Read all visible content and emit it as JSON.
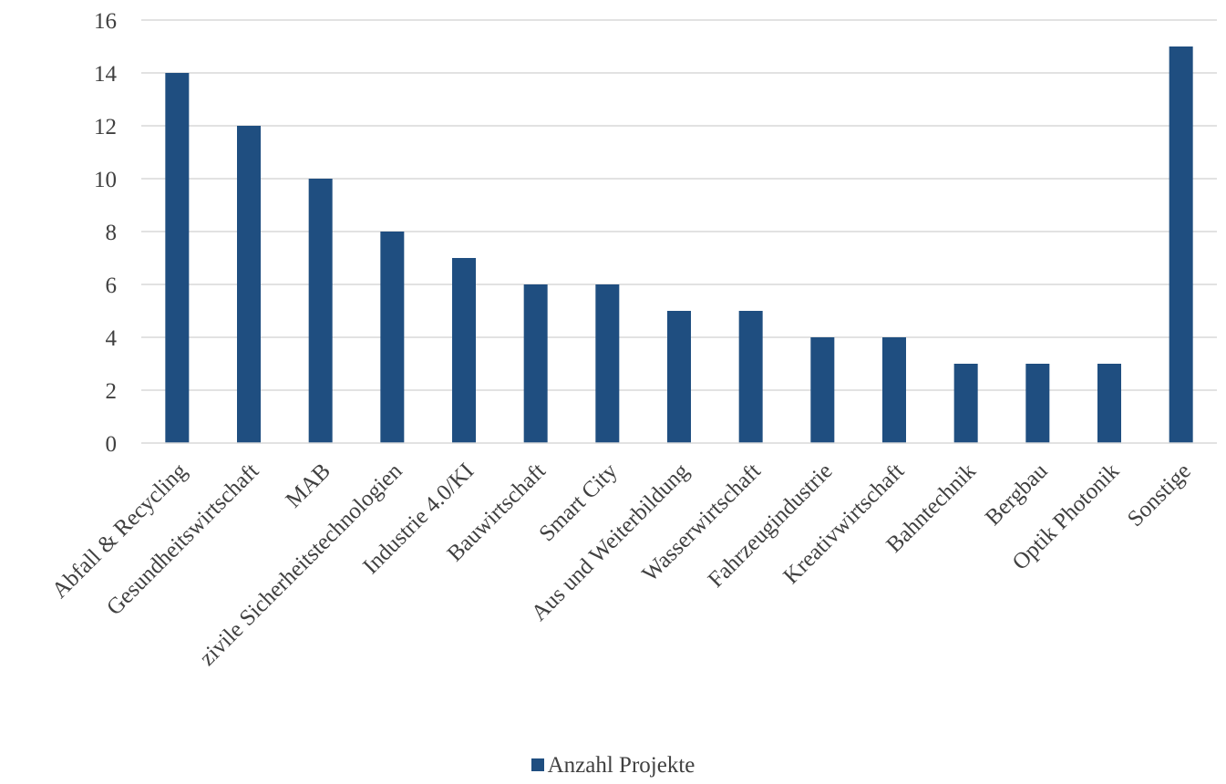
{
  "chart_data": {
    "type": "bar",
    "title": "",
    "xlabel": "",
    "ylabel": "",
    "ylim": [
      0,
      16
    ],
    "yticks": [
      0,
      2,
      4,
      6,
      8,
      10,
      12,
      14,
      16
    ],
    "grid": true,
    "legend_position": "bottom",
    "categories": [
      "Abfall & Recycling",
      "Gesundheitswirtschaft",
      "MAB",
      "zivile Sicherheitstechnologien",
      "Industrie 4.0/KI",
      "Bauwirtschaft",
      "Smart City",
      "Aus und Weiterbildung",
      "Wasserwirtschaft",
      "Fahrzeugindustrie",
      "Kreativwirtschaft",
      "Bahntechnik",
      "Bergbau",
      "Optik Photonik",
      "Sonstige"
    ],
    "series": [
      {
        "name": "Anzahl Projekte",
        "color": "#1f4e80",
        "values": [
          14,
          12,
          10,
          8,
          7,
          6,
          6,
          5,
          5,
          4,
          4,
          3,
          3,
          3,
          15
        ]
      }
    ],
    "colors": {
      "bar": "#1f4e80",
      "grid": "#d9d9d9",
      "text": "#404040"
    }
  }
}
